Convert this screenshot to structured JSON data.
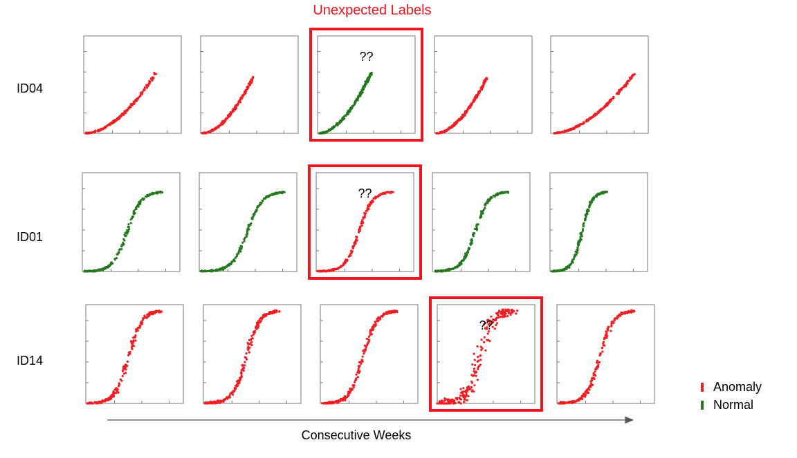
{
  "figure": {
    "title": "Unexpected Labels",
    "title_color": "#f0141e",
    "xlabel": "Consecutive Weeks",
    "highlight_color": "#f0141e",
    "question_mark": "??"
  },
  "legend": {
    "position": "bottom-right",
    "items": [
      {
        "label": "Anomaly",
        "color": "#f01e23"
      },
      {
        "label": "Normal",
        "color": "#24781e"
      }
    ]
  },
  "chart_data": {
    "type": "scatter",
    "xlabel": "Consecutive Weeks",
    "rows": [
      {
        "label": "ID04",
        "panels": [
          {
            "week": 1,
            "label": "Anomaly",
            "highlighted": false,
            "x_end": 0.74,
            "y_max": 0.62
          },
          {
            "week": 2,
            "label": "Anomaly",
            "highlighted": false,
            "x_end": 0.54,
            "y_max": 0.58
          },
          {
            "week": 3,
            "label": "Normal",
            "highlighted": true,
            "x_end": 0.55,
            "y_max": 0.62
          },
          {
            "week": 4,
            "label": "Anomaly",
            "highlighted": false,
            "x_end": 0.54,
            "y_max": 0.58
          },
          {
            "week": 5,
            "label": "Anomaly",
            "highlighted": false,
            "x_end": 0.86,
            "y_max": 0.62
          }
        ]
      },
      {
        "label": "ID01",
        "panels": [
          {
            "week": 1,
            "label": "Normal",
            "highlighted": false,
            "x_end": 0.82,
            "y_max": 0.81
          },
          {
            "week": 2,
            "label": "Normal",
            "highlighted": false,
            "x_end": 0.88,
            "y_max": 0.81
          },
          {
            "week": 3,
            "label": "Anomaly",
            "highlighted": true,
            "x_end": 0.78,
            "y_max": 0.81
          },
          {
            "week": 4,
            "label": "Normal",
            "highlighted": false,
            "x_end": 0.78,
            "y_max": 0.81
          },
          {
            "week": 5,
            "label": "Normal",
            "highlighted": false,
            "x_end": 0.58,
            "y_max": 0.81
          }
        ]
      },
      {
        "label": "ID14",
        "panels": [
          {
            "week": 1,
            "label": "Anomaly",
            "highlighted": false,
            "x_end": 0.78,
            "y_max": 0.94
          },
          {
            "week": 2,
            "label": "Anomaly",
            "highlighted": false,
            "x_end": 0.78,
            "y_max": 0.94
          },
          {
            "week": 3,
            "label": "Anomaly",
            "highlighted": false,
            "x_end": 0.78,
            "y_max": 0.94
          },
          {
            "week": 4,
            "label": "Anomaly",
            "highlighted": true,
            "x_end": 0.78,
            "y_max": 0.94
          },
          {
            "week": 5,
            "label": "Anomaly",
            "highlighted": false,
            "x_end": 0.78,
            "y_max": 0.94
          }
        ]
      }
    ]
  }
}
